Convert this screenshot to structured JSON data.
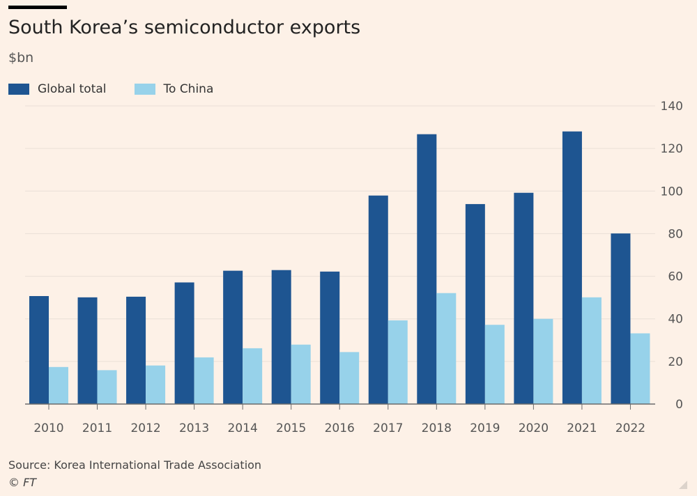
{
  "header": {
    "title": "South Korea’s semiconductor exports",
    "unit": "$bn"
  },
  "legend": {
    "global_label": "Global total",
    "china_label": "To China"
  },
  "footer": {
    "source": "Source: Korea International Trade Association",
    "copyright": "© FT"
  },
  "colors": {
    "background": "#fdf1e7",
    "global": "#1e5591",
    "china": "#97d2ea",
    "grid": "#eae0d7",
    "axis": "#6b6b6b"
  },
  "chart_data": {
    "type": "bar",
    "title": "South Korea’s semiconductor exports",
    "ylabel": "$bn",
    "xlabel": "",
    "categories": [
      "2010",
      "2011",
      "2012",
      "2013",
      "2014",
      "2015",
      "2016",
      "2017",
      "2018",
      "2019",
      "2020",
      "2021",
      "2022"
    ],
    "series": [
      {
        "name": "Global total",
        "values": [
          50.7,
          50.1,
          50.4,
          57.1,
          62.6,
          62.9,
          62.2,
          97.9,
          126.7,
          93.9,
          99.2,
          128.0,
          80.1
        ]
      },
      {
        "name": "To China",
        "values": [
          17.4,
          15.9,
          18.1,
          21.9,
          26.2,
          27.9,
          24.4,
          39.3,
          52.1,
          37.2,
          40.0,
          50.1,
          33.2
        ]
      }
    ],
    "ylim": [
      0,
      140
    ],
    "yticks": [
      "0",
      "20",
      "40",
      "60",
      "80",
      "100",
      "120",
      "140"
    ],
    "y_axis_side": "right",
    "grid": true,
    "legend_position": "top-left"
  }
}
